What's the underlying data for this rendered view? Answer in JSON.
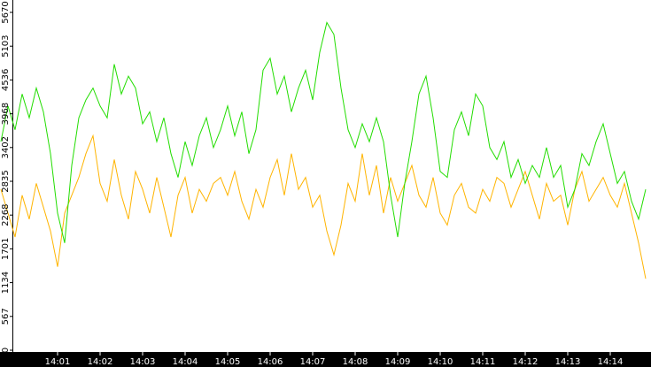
{
  "chart_data": {
    "type": "line",
    "categories": [
      null,
      null,
      null,
      null,
      null,
      null,
      null,
      null,
      "14:01",
      null,
      null,
      null,
      null,
      null,
      "14:02",
      null,
      null,
      null,
      null,
      null,
      "14:03",
      null,
      null,
      null,
      null,
      null,
      "14:04",
      null,
      null,
      null,
      null,
      null,
      "14:05",
      null,
      null,
      null,
      null,
      null,
      "14:06",
      null,
      null,
      null,
      null,
      null,
      "14:07",
      null,
      null,
      null,
      null,
      null,
      "14:08",
      null,
      null,
      null,
      null,
      null,
      "14:09",
      null,
      null,
      null,
      null,
      null,
      "14:10",
      null,
      null,
      null,
      null,
      null,
      "14:11",
      null,
      null,
      null,
      null,
      null,
      "14:12",
      null,
      null,
      null,
      null,
      null,
      "14:13",
      null,
      null,
      null,
      null,
      null,
      "14:14",
      null,
      null,
      null,
      null,
      null
    ],
    "series": [
      {
        "color": "#22dd00",
        "values": [
          3500,
          4100,
          3700,
          4300,
          3900,
          4400,
          4000,
          3300,
          2300,
          1800,
          3100,
          3900,
          4200,
          4400,
          4100,
          3900,
          4800,
          4300,
          4600,
          4400,
          3800,
          4000,
          3500,
          3900,
          3300,
          2900,
          3500,
          3100,
          3600,
          3900,
          3400,
          3700,
          4100,
          3600,
          4000,
          3300,
          3700,
          4700,
          4900,
          4300,
          4600,
          4000,
          4400,
          4700,
          4200,
          5000,
          5500,
          5300,
          4400,
          3700,
          3400,
          3800,
          3500,
          3900,
          3500,
          2600,
          1900,
          2800,
          3500,
          4300,
          4600,
          3900,
          3000,
          2900,
          3700,
          4000,
          3600,
          4300,
          4100,
          3400,
          3200,
          3500,
          2900,
          3200,
          2800,
          3100,
          2900,
          3400,
          2900,
          3100,
          2400,
          2700,
          3300,
          3100,
          3500,
          3800,
          3300,
          2800,
          3000,
          2500,
          2200,
          2700
        ]
      },
      {
        "color": "#ffb400",
        "values": [
          2700,
          2300,
          1900,
          2600,
          2200,
          2800,
          2400,
          2000,
          1400,
          2300,
          2600,
          2900,
          3300,
          3600,
          2800,
          2500,
          3200,
          2600,
          2200,
          3000,
          2700,
          2300,
          2900,
          2400,
          1900,
          2600,
          2900,
          2300,
          2700,
          2500,
          2800,
          2900,
          2600,
          3000,
          2500,
          2200,
          2700,
          2400,
          2900,
          3200,
          2600,
          3300,
          2700,
          2900,
          2400,
          2600,
          2000,
          1600,
          2100,
          2800,
          2500,
          3300,
          2600,
          3100,
          2300,
          2900,
          2500,
          2800,
          3100,
          2600,
          2400,
          2900,
          2300,
          2100,
          2600,
          2800,
          2400,
          2300,
          2700,
          2500,
          2900,
          2800,
          2400,
          2700,
          3000,
          2600,
          2200,
          2800,
          2500,
          2600,
          2100,
          2700,
          3000,
          2500,
          2700,
          2900,
          2600,
          2400,
          2800,
          2300,
          1800,
          1200
        ]
      }
    ],
    "ylim": [
      0,
      5670
    ],
    "yticks": [
      0,
      567,
      1134,
      1701,
      2268,
      2835,
      3402,
      3968,
      4536,
      5103,
      5670
    ]
  }
}
